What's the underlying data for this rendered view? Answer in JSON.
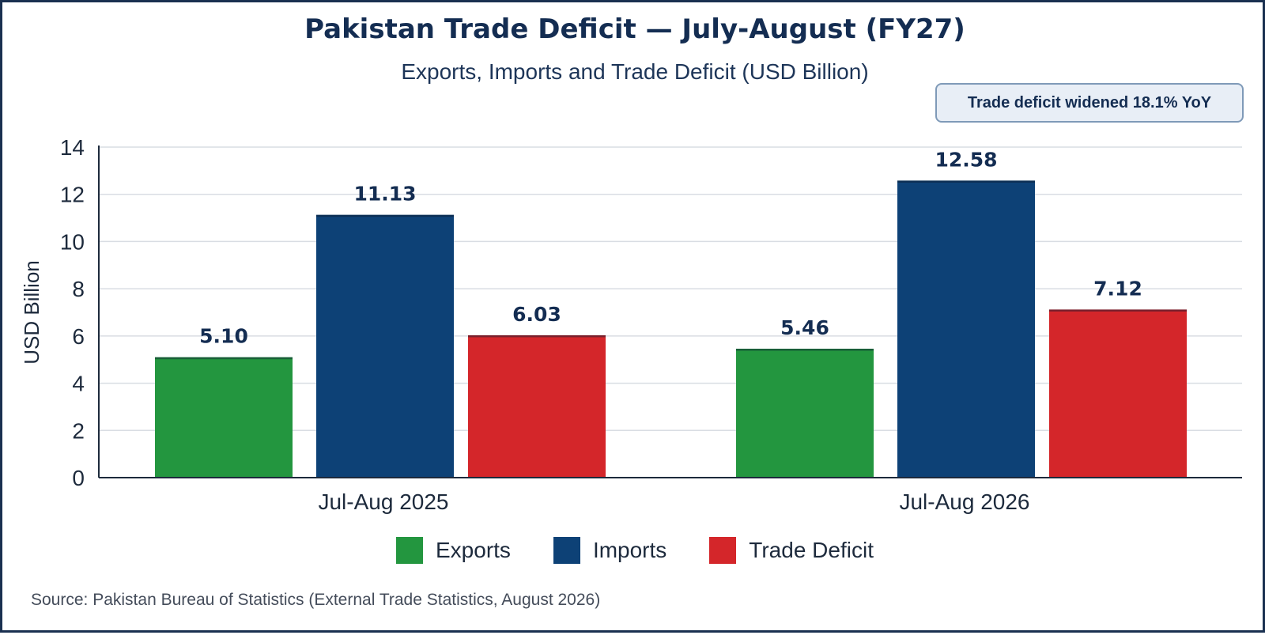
{
  "header": {
    "title": "Pakistan Trade Deficit — July-August (FY27)",
    "subtitle": "Exports, Imports and Trade Deficit (USD Billion)"
  },
  "callout": {
    "text": "Trade deficit widened 18.1% YoY"
  },
  "source": "Source: Pakistan Bureau of Statistics (External Trade Statistics, August 2026)",
  "chart_data": {
    "type": "bar",
    "title": "Pakistan Trade Deficit — July-August (FY27)",
    "subtitle": "Exports, Imports and Trade Deficit (USD Billion)",
    "categories": [
      "Jul-Aug 2025",
      "Jul-Aug 2026"
    ],
    "series": [
      {
        "name": "Exports",
        "values": [
          5.1,
          5.46
        ],
        "labels": [
          "5.10",
          "5.46"
        ],
        "color": "#23963f"
      },
      {
        "name": "Imports",
        "values": [
          11.13,
          12.58
        ],
        "labels": [
          "11.13",
          "12.58"
        ],
        "color": "#0d4176"
      },
      {
        "name": "Trade Deficit",
        "values": [
          6.03,
          7.12
        ],
        "labels": [
          "6.03",
          "7.12"
        ],
        "color": "#d4262a"
      }
    ],
    "xlabel": "",
    "ylabel": "USD Billion",
    "ylim": [
      0,
      14
    ],
    "yticks": [
      0,
      2,
      4,
      6,
      8,
      10,
      12,
      14
    ],
    "grid": true,
    "legend_position": "bottom-center",
    "annotation": "Trade deficit widened 18.1% YoY"
  }
}
